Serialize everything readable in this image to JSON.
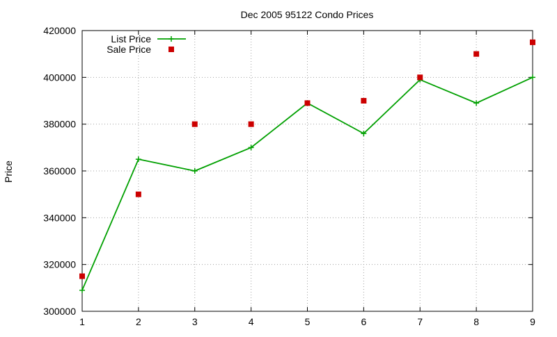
{
  "chart_data": {
    "type": "line",
    "title": "Dec 2005 95122 Condo Prices",
    "xlabel": "",
    "ylabel": "Price",
    "xlim": [
      1,
      9
    ],
    "ylim": [
      300000,
      420000
    ],
    "xticks": [
      "1",
      "2",
      "3",
      "4",
      "5",
      "6",
      "7",
      "8",
      "9"
    ],
    "yticks": [
      "300000",
      "320000",
      "340000",
      "360000",
      "380000",
      "400000",
      "420000"
    ],
    "grid": true,
    "legend_position": "top-left",
    "series": [
      {
        "name": "List Price",
        "style": "line-points",
        "marker": "plus",
        "color": "#00a000",
        "x": [
          1,
          2,
          3,
          4,
          5,
          6,
          7,
          8,
          9
        ],
        "y": [
          309000,
          365000,
          360000,
          370000,
          389000,
          376000,
          399000,
          389000,
          400000
        ]
      },
      {
        "name": "Sale Price",
        "style": "points",
        "marker": "square",
        "color": "#cc0000",
        "x": [
          1,
          2,
          3,
          4,
          5,
          6,
          7,
          8,
          9
        ],
        "y": [
          315000,
          350000,
          380000,
          380000,
          389000,
          390000,
          400000,
          410000,
          415000
        ]
      }
    ]
  }
}
